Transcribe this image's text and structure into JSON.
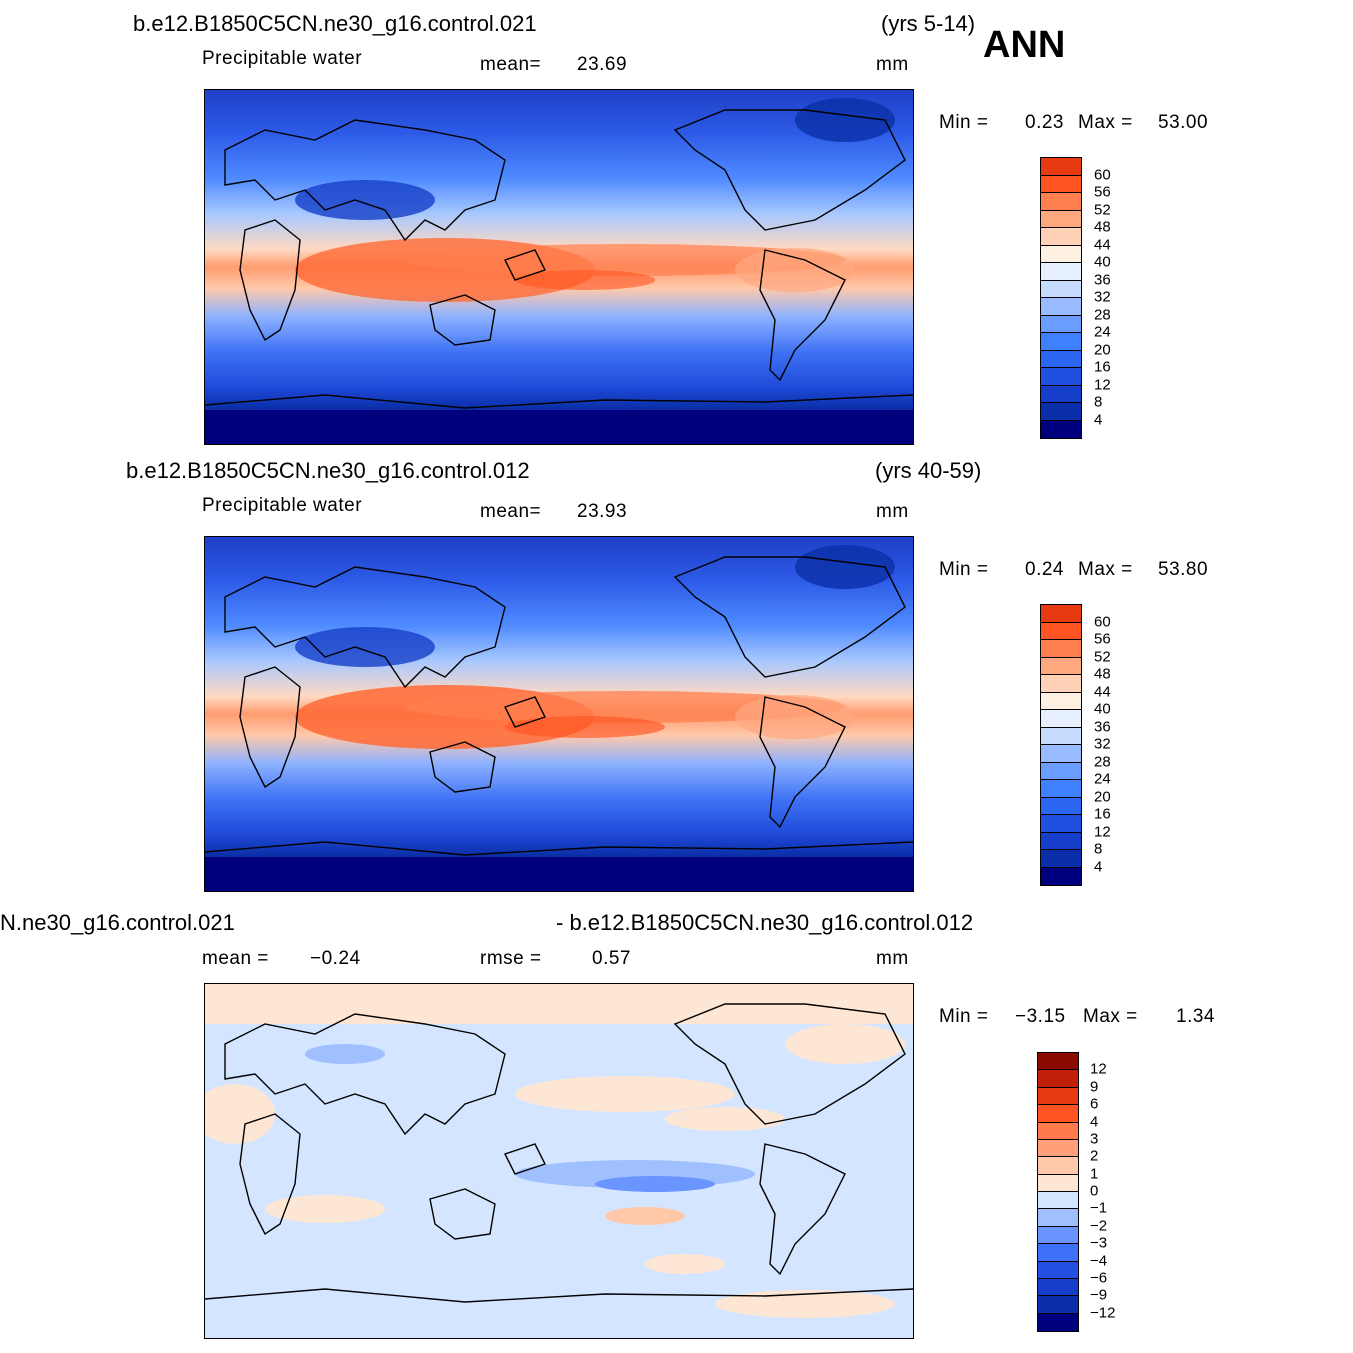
{
  "season": "ANN",
  "colors": {
    "abs_scale": [
      "#00007f",
      "#0b2fa8",
      "#153fc8",
      "#1f50e0",
      "#2a66f0",
      "#3f80ff",
      "#6a9dff",
      "#98bcff",
      "#c6dcff",
      "#e6f0ff",
      "#fff0e4",
      "#ffd2b8",
      "#ffa880",
      "#ff7f4f",
      "#ff5522",
      "#e63a10",
      "#c21f08",
      "#8c0a00"
    ],
    "diff_scale": [
      "#00007f",
      "#0b2fa8",
      "#153fc8",
      "#2350e0",
      "#3f70f8",
      "#6a95ff",
      "#9fbfff",
      "#d4e6ff",
      "#fde6d4",
      "#ffc8a8",
      "#ffa07a",
      "#ff7a4a",
      "#ff5522",
      "#e63a10",
      "#c21f08",
      "#8c0a00"
    ]
  },
  "panels": [
    {
      "case": "b.e12.B1850C5CN.ne30_g16.control.021",
      "years": "(yrs 5-14)",
      "variable": "Precipitable  water",
      "mean_label": "mean=",
      "mean_value": "23.69",
      "units": "mm",
      "min_label": "Min  =",
      "min_value": "0.23",
      "max_label": "Max  =",
      "max_value": "53.00",
      "levels": [
        "60",
        "56",
        "52",
        "48",
        "44",
        "40",
        "36",
        "32",
        "28",
        "24",
        "20",
        "16",
        "12",
        "8",
        "4"
      ]
    },
    {
      "case": "b.e12.B1850C5CN.ne30_g16.control.012",
      "years": "(yrs 40-59)",
      "variable": "Precipitable  water",
      "mean_label": "mean=",
      "mean_value": "23.93",
      "units": "mm",
      "min_label": "Min  =",
      "min_value": "0.24",
      "max_label": "Max  =",
      "max_value": "53.80",
      "levels": [
        "60",
        "56",
        "52",
        "48",
        "44",
        "40",
        "36",
        "32",
        "28",
        "24",
        "20",
        "16",
        "12",
        "8",
        "4"
      ]
    },
    {
      "case_left": "N.ne30_g16.control.021",
      "case_right": "- b.e12.B1850C5CN.ne30_g16.control.012",
      "mean_label": "mean  =",
      "mean_value": "−0.24",
      "rmse_label": "rmse  =",
      "rmse_value": "0.57",
      "units": "mm",
      "min_label": "Min  =",
      "min_value": "−3.15",
      "max_label": "Max  =",
      "max_value": "1.34",
      "levels": [
        "12",
        "9",
        "6",
        "4",
        "3",
        "2",
        "1",
        "0",
        "−1",
        "−2",
        "−3",
        "−4",
        "−6",
        "−9",
        "−12"
      ]
    }
  ]
}
